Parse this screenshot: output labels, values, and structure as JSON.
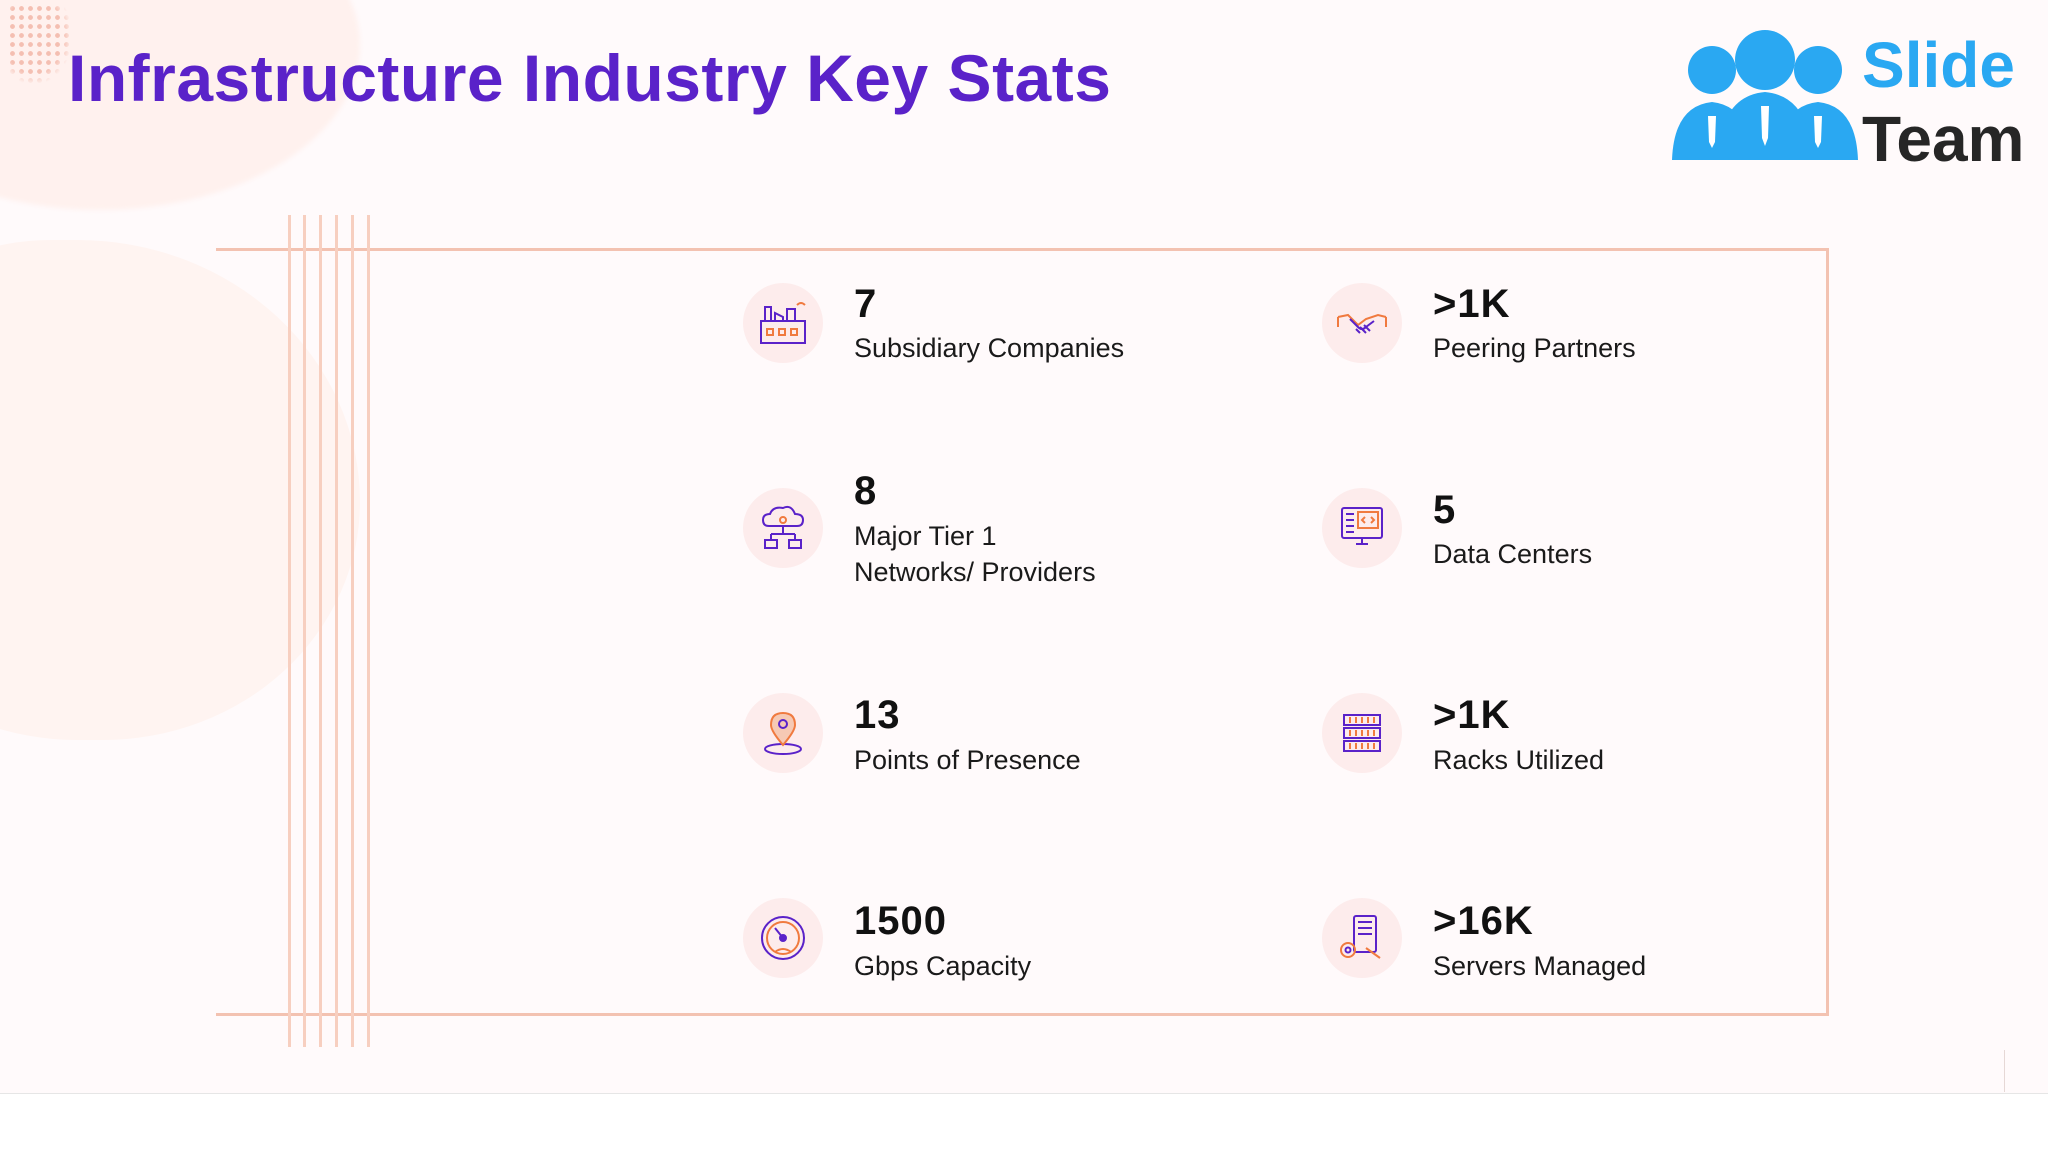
{
  "slide": {
    "title": "Infrastructure Industry Key Stats"
  },
  "logo": {
    "line1": "Slide",
    "line2": "Team",
    "colors": {
      "blue": "#2aa8f2",
      "dark": "#262626"
    }
  },
  "stats": [
    {
      "value": "7",
      "label_lines": [
        "Subsidiary Companies"
      ],
      "icon": "factory-icon"
    },
    {
      "value": ">1K",
      "label_lines": [
        "Peering Partners"
      ],
      "icon": "handshake-icon"
    },
    {
      "value": "8",
      "label_lines": [
        "Major Tier 1",
        "Networks/ Providers"
      ],
      "icon": "cloud-network-icon"
    },
    {
      "value": "5",
      "label_lines": [
        "Data Centers"
      ],
      "icon": "monitor-code-icon"
    },
    {
      "value": "13",
      "label_lines": [
        "Points of Presence"
      ],
      "icon": "location-pin-icon"
    },
    {
      "value": ">1K",
      "label_lines": [
        "Racks Utilized"
      ],
      "icon": "server-rack-icon"
    },
    {
      "value": "1500",
      "label_lines": [
        "Gbps Capacity"
      ],
      "icon": "speedometer-icon"
    },
    {
      "value": ">16K",
      "label_lines": [
        "Servers Managed"
      ],
      "icon": "server-wrench-icon"
    }
  ],
  "colors": {
    "title": "#5a22c9",
    "accent_line": "#f3c2b1",
    "icon_stroke": "#5a22c9",
    "icon_accent": "#f07a3f"
  }
}
